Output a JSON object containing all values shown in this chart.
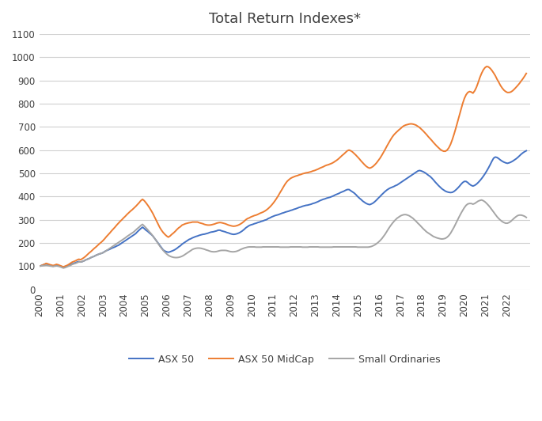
{
  "title": "Total Return Indexes*",
  "title_color": "#404040",
  "background_color": "#ffffff",
  "ylim": [
    0,
    1100
  ],
  "yticks": [
    0,
    100,
    200,
    300,
    400,
    500,
    600,
    700,
    800,
    900,
    1000,
    1100
  ],
  "grid_color": "#d0d0d0",
  "line_colors": {
    "asx50": "#4472C4",
    "midcap": "#ED7D31",
    "small": "#A5A5A5"
  },
  "line_width": 1.4,
  "legend_labels": [
    "ASX 50",
    "ASX 50 MidCap",
    "Small Ordinaries"
  ],
  "asx50": [
    100,
    102,
    105,
    108,
    110,
    108,
    105,
    102,
    100,
    102,
    105,
    103,
    100,
    98,
    95,
    97,
    100,
    103,
    107,
    110,
    112,
    115,
    118,
    120,
    118,
    120,
    123,
    127,
    130,
    133,
    137,
    140,
    143,
    147,
    150,
    153,
    155,
    158,
    163,
    167,
    170,
    173,
    177,
    180,
    183,
    187,
    190,
    195,
    200,
    205,
    210,
    215,
    220,
    225,
    230,
    235,
    240,
    248,
    255,
    262,
    268,
    262,
    255,
    250,
    243,
    237,
    230,
    220,
    210,
    200,
    190,
    180,
    170,
    165,
    162,
    160,
    162,
    165,
    168,
    172,
    177,
    183,
    188,
    195,
    200,
    205,
    210,
    215,
    218,
    222,
    225,
    228,
    230,
    233,
    235,
    237,
    238,
    240,
    242,
    245,
    247,
    248,
    250,
    252,
    255,
    255,
    252,
    250,
    248,
    245,
    243,
    240,
    238,
    237,
    238,
    240,
    243,
    247,
    252,
    258,
    265,
    270,
    275,
    278,
    280,
    283,
    285,
    288,
    290,
    293,
    295,
    298,
    300,
    305,
    308,
    312,
    315,
    318,
    320,
    322,
    325,
    328,
    330,
    333,
    335,
    337,
    340,
    342,
    345,
    347,
    350,
    353,
    355,
    358,
    360,
    362,
    363,
    365,
    367,
    370,
    372,
    375,
    378,
    382,
    385,
    388,
    390,
    393,
    395,
    397,
    400,
    403,
    407,
    410,
    413,
    417,
    420,
    423,
    427,
    430,
    430,
    425,
    420,
    415,
    408,
    400,
    393,
    387,
    380,
    375,
    370,
    367,
    365,
    368,
    372,
    378,
    385,
    393,
    400,
    408,
    415,
    422,
    428,
    433,
    437,
    440,
    443,
    447,
    450,
    455,
    460,
    465,
    470,
    475,
    480,
    485,
    490,
    495,
    500,
    505,
    510,
    512,
    510,
    507,
    503,
    498,
    492,
    487,
    480,
    472,
    463,
    455,
    447,
    440,
    433,
    428,
    423,
    420,
    418,
    417,
    418,
    422,
    428,
    435,
    443,
    452,
    460,
    465,
    465,
    460,
    453,
    448,
    445,
    448,
    453,
    460,
    468,
    477,
    487,
    498,
    510,
    523,
    537,
    552,
    565,
    570,
    568,
    563,
    557,
    552,
    548,
    545,
    543,
    545,
    548,
    552,
    557,
    562,
    568,
    575,
    582,
    588,
    593,
    597
  ],
  "midcap": [
    100,
    102,
    105,
    108,
    112,
    110,
    107,
    105,
    103,
    105,
    108,
    106,
    103,
    100,
    97,
    100,
    103,
    107,
    112,
    117,
    120,
    123,
    127,
    130,
    128,
    132,
    137,
    143,
    150,
    157,
    163,
    170,
    177,
    183,
    190,
    197,
    203,
    210,
    218,
    227,
    235,
    243,
    252,
    260,
    268,
    277,
    285,
    293,
    300,
    308,
    315,
    323,
    330,
    337,
    343,
    350,
    357,
    365,
    373,
    382,
    388,
    382,
    373,
    363,
    352,
    340,
    327,
    312,
    297,
    282,
    267,
    255,
    245,
    237,
    230,
    225,
    230,
    237,
    243,
    250,
    258,
    265,
    270,
    277,
    280,
    283,
    285,
    287,
    288,
    290,
    290,
    290,
    290,
    287,
    285,
    283,
    280,
    278,
    277,
    277,
    278,
    280,
    282,
    285,
    287,
    288,
    287,
    285,
    283,
    280,
    277,
    275,
    273,
    272,
    273,
    275,
    278,
    282,
    287,
    293,
    300,
    305,
    308,
    312,
    315,
    318,
    320,
    323,
    327,
    330,
    333,
    337,
    342,
    348,
    355,
    363,
    372,
    382,
    393,
    405,
    418,
    430,
    443,
    455,
    465,
    472,
    478,
    482,
    485,
    488,
    490,
    493,
    495,
    498,
    500,
    502,
    503,
    505,
    507,
    510,
    512,
    515,
    518,
    522,
    525,
    528,
    532,
    535,
    537,
    540,
    543,
    547,
    552,
    557,
    563,
    570,
    577,
    583,
    590,
    597,
    600,
    597,
    592,
    585,
    578,
    570,
    562,
    553,
    545,
    537,
    530,
    525,
    522,
    525,
    530,
    537,
    545,
    555,
    565,
    577,
    590,
    603,
    617,
    630,
    643,
    655,
    665,
    673,
    680,
    687,
    693,
    700,
    705,
    708,
    710,
    712,
    713,
    712,
    710,
    707,
    702,
    697,
    690,
    683,
    675,
    667,
    658,
    650,
    642,
    633,
    625,
    617,
    610,
    603,
    598,
    595,
    595,
    600,
    610,
    625,
    645,
    668,
    693,
    720,
    748,
    775,
    800,
    822,
    838,
    848,
    852,
    850,
    845,
    855,
    870,
    890,
    912,
    930,
    945,
    955,
    960,
    958,
    952,
    943,
    932,
    920,
    905,
    892,
    878,
    867,
    858,
    852,
    848,
    848,
    850,
    855,
    862,
    870,
    878,
    887,
    897,
    907,
    918,
    930
  ],
  "small": [
    100,
    101,
    102,
    103,
    104,
    103,
    101,
    100,
    99,
    100,
    101,
    100,
    98,
    95,
    92,
    94,
    97,
    100,
    103,
    107,
    110,
    112,
    115,
    118,
    118,
    120,
    123,
    127,
    130,
    133,
    137,
    140,
    143,
    147,
    150,
    153,
    155,
    158,
    162,
    167,
    172,
    177,
    182,
    187,
    192,
    197,
    202,
    207,
    212,
    217,
    222,
    228,
    233,
    238,
    243,
    248,
    255,
    262,
    268,
    275,
    280,
    273,
    265,
    257,
    248,
    240,
    230,
    220,
    210,
    198,
    187,
    177,
    168,
    160,
    153,
    147,
    143,
    140,
    138,
    137,
    137,
    138,
    140,
    143,
    147,
    152,
    157,
    162,
    167,
    172,
    175,
    177,
    178,
    178,
    177,
    175,
    173,
    170,
    168,
    165,
    163,
    162,
    162,
    163,
    165,
    167,
    168,
    168,
    168,
    167,
    165,
    163,
    162,
    162,
    163,
    165,
    168,
    172,
    175,
    178,
    180,
    182,
    183,
    183,
    183,
    183,
    182,
    182,
    182,
    182,
    183,
    183,
    183,
    183,
    183,
    183,
    183,
    183,
    183,
    183,
    182,
    182,
    182,
    182,
    182,
    182,
    183,
    183,
    183,
    183,
    183,
    183,
    183,
    182,
    182,
    182,
    182,
    183,
    183,
    183,
    183,
    183,
    183,
    182,
    182,
    182,
    182,
    182,
    182,
    182,
    182,
    183,
    183,
    183,
    183,
    183,
    183,
    183,
    183,
    183,
    183,
    183,
    183,
    183,
    183,
    182,
    182,
    182,
    182,
    182,
    182,
    182,
    183,
    185,
    188,
    192,
    197,
    203,
    210,
    218,
    228,
    238,
    250,
    262,
    273,
    283,
    292,
    300,
    307,
    312,
    317,
    320,
    322,
    322,
    320,
    317,
    312,
    307,
    300,
    293,
    285,
    278,
    270,
    262,
    255,
    248,
    243,
    238,
    233,
    228,
    225,
    222,
    220,
    218,
    217,
    218,
    220,
    225,
    232,
    242,
    255,
    268,
    283,
    298,
    313,
    327,
    340,
    352,
    362,
    368,
    370,
    370,
    367,
    370,
    375,
    380,
    383,
    385,
    382,
    377,
    370,
    362,
    353,
    343,
    333,
    323,
    313,
    305,
    298,
    292,
    288,
    285,
    285,
    288,
    293,
    300,
    307,
    313,
    318,
    320,
    320,
    318,
    315,
    310
  ]
}
